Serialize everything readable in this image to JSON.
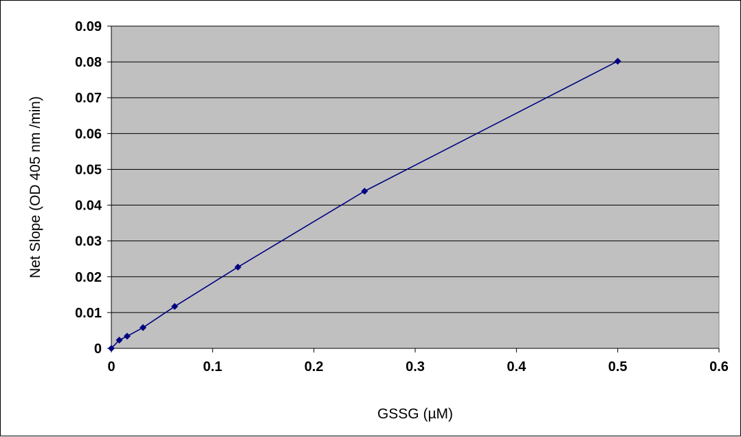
{
  "chart_data": {
    "type": "scatter",
    "title": "",
    "xlabel": "GSSG (µM)",
    "ylabel": "Net Slope (OD 405 nm /min)",
    "xlim": [
      0,
      0.6
    ],
    "ylim": [
      0,
      0.09
    ],
    "x_ticks": [
      "0",
      "0.1",
      "0.2",
      "0.3",
      "0.4",
      "0.5",
      "0.6"
    ],
    "y_ticks": [
      "0",
      "0.01",
      "0.02",
      "0.03",
      "0.04",
      "0.05",
      "0.06",
      "0.07",
      "0.08",
      "0.09"
    ],
    "grid": "horizontal",
    "legend": "none",
    "plot_background": "#c0c0c0",
    "series": [
      {
        "color": "#000080",
        "marker": "diamond",
        "connected": true,
        "x": [
          0,
          0.0078,
          0.0156,
          0.03125,
          0.0625,
          0.125,
          0.25,
          0.5
        ],
        "y": [
          0,
          0.0023,
          0.0034,
          0.0058,
          0.0117,
          0.0227,
          0.0439,
          0.0802
        ]
      }
    ]
  }
}
